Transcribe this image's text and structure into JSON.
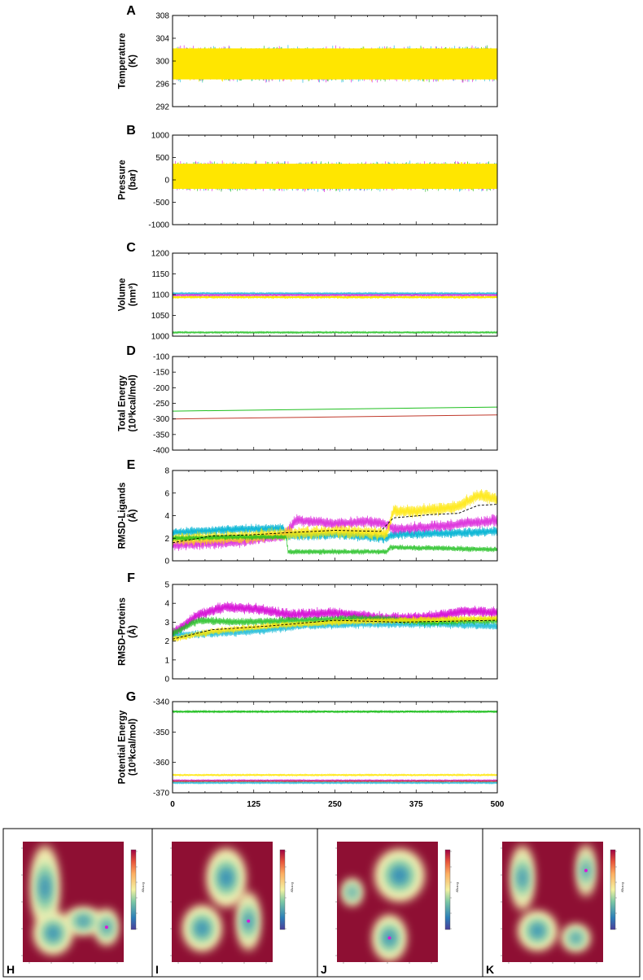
{
  "colors": {
    "yellow": "#ffe600",
    "magenta": "#d81ad8",
    "cyan": "#12b8d6",
    "green": "#1fbf1f",
    "red": "#c0392b",
    "black": "#000000",
    "fel_background": "#8e0f33"
  },
  "series_colors": [
    "cyan",
    "magenta",
    "yellow",
    "green"
  ],
  "x_axis": {
    "ticks": [
      "0",
      "125",
      "250",
      "375",
      "500"
    ],
    "range": [
      0,
      500
    ]
  },
  "chart_data": [
    {
      "letter": "A",
      "type": "line",
      "ylabel_lines": [
        "Temperature",
        "(K)"
      ],
      "yticks": [
        "308",
        "304",
        "300",
        "296",
        "292"
      ],
      "ylim": [
        292,
        308
      ],
      "series": [
        {
          "color": "yellow",
          "mean": 299.5,
          "amplitude": 3.2
        },
        {
          "color": "magenta",
          "mean": 299.5,
          "amplitude": 3.4
        },
        {
          "color": "cyan",
          "mean": 299.5,
          "amplitude": 3.4
        },
        {
          "color": "green",
          "mean": 299.5,
          "amplitude": 3.3
        }
      ]
    },
    {
      "letter": "B",
      "type": "line",
      "ylabel_lines": [
        "Pressure",
        "(bar)"
      ],
      "yticks": [
        "1000",
        "500",
        "0",
        "-500",
        "-1000"
      ],
      "ylim": [
        -1000,
        1000
      ],
      "series": [
        {
          "color": "yellow",
          "mean": 80,
          "amplitude": 330
        },
        {
          "color": "magenta",
          "mean": 80,
          "amplitude": 360
        },
        {
          "color": "cyan",
          "mean": 80,
          "amplitude": 360
        },
        {
          "color": "green",
          "mean": 80,
          "amplitude": 350
        }
      ]
    },
    {
      "letter": "C",
      "type": "line",
      "ylabel_lines": [
        "Volume",
        "(nm³)"
      ],
      "yticks": [
        "1200",
        "1150",
        "1100",
        "1050",
        "1000"
      ],
      "ylim": [
        1000,
        1200
      ],
      "series": [
        {
          "color": "yellow",
          "mean": 1094,
          "amplitude": 4
        },
        {
          "color": "cyan",
          "mean": 1103,
          "amplitude": 3
        },
        {
          "color": "magenta",
          "mean": 1099,
          "amplitude": 3
        },
        {
          "color": "green",
          "mean": 1009,
          "amplitude": 3
        }
      ]
    },
    {
      "letter": "D",
      "type": "line",
      "ylabel_lines": [
        "Total Energy",
        "(10³kcal/mol)"
      ],
      "yticks": [
        "-100",
        "-150",
        "-200",
        "-250",
        "-300",
        "-350",
        "-400"
      ],
      "ylim": [
        -400,
        -100
      ],
      "series": [
        {
          "color": "green",
          "start": -275,
          "end": -262
        },
        {
          "color": "red",
          "start": -300,
          "end": -287
        }
      ]
    },
    {
      "letter": "E",
      "type": "line",
      "ylabel_lines": [
        "RMSD-Ligands",
        "(Å)"
      ],
      "yticks": [
        "8",
        "6",
        "4",
        "2",
        "0"
      ],
      "ylim": [
        0,
        8
      ],
      "series": [
        {
          "color": "cyan",
          "points": [
            [
              0,
              2.5
            ],
            [
              100,
              2.8
            ],
            [
              170,
              2.9
            ],
            [
              175,
              2.2
            ],
            [
              260,
              2.3
            ],
            [
              330,
              2.0
            ],
            [
              335,
              2.3
            ],
            [
              400,
              2.4
            ],
            [
              500,
              2.6
            ]
          ],
          "amplitude": 0.5
        },
        {
          "color": "magenta",
          "points": [
            [
              0,
              1.4
            ],
            [
              100,
              1.7
            ],
            [
              170,
              2.2
            ],
            [
              190,
              3.6
            ],
            [
              250,
              3.3
            ],
            [
              300,
              3.5
            ],
            [
              330,
              3.2
            ],
            [
              340,
              2.8
            ],
            [
              420,
              3.1
            ],
            [
              500,
              3.6
            ]
          ],
          "amplitude": 0.6
        },
        {
          "color": "yellow",
          "points": [
            [
              0,
              1.9
            ],
            [
              100,
              2.1
            ],
            [
              180,
              2.4
            ],
            [
              250,
              2.6
            ],
            [
              300,
              2.5
            ],
            [
              330,
              2.4
            ],
            [
              340,
              4.4
            ],
            [
              380,
              4.4
            ],
            [
              440,
              4.8
            ],
            [
              470,
              5.8
            ],
            [
              500,
              5.5
            ]
          ],
          "amplitude": 0.7
        },
        {
          "color": "green",
          "points": [
            [
              0,
              2.0
            ],
            [
              100,
              2.1
            ],
            [
              175,
              2.1
            ],
            [
              178,
              0.8
            ],
            [
              330,
              0.8
            ],
            [
              335,
              1.2
            ],
            [
              500,
              1.0
            ]
          ],
          "amplitude": 0.3
        }
      ],
      "mean_line": [
        [
          0,
          1.6
        ],
        [
          60,
          2.2
        ],
        [
          120,
          2.3
        ],
        [
          180,
          2.5
        ],
        [
          250,
          2.7
        ],
        [
          320,
          2.6
        ],
        [
          340,
          3.8
        ],
        [
          400,
          4.1
        ],
        [
          440,
          4.2
        ],
        [
          470,
          4.9
        ],
        [
          500,
          5.0
        ]
      ]
    },
    {
      "letter": "F",
      "type": "line",
      "ylabel_lines": [
        "RMSD-Proteins",
        "(Å)"
      ],
      "yticks": [
        "5",
        "4",
        "3",
        "2",
        "1",
        "0"
      ],
      "ylim": [
        0,
        5
      ],
      "series": [
        {
          "color": "magenta",
          "points": [
            [
              0,
              2.4
            ],
            [
              40,
              3.4
            ],
            [
              80,
              3.8
            ],
            [
              130,
              3.7
            ],
            [
              180,
              3.4
            ],
            [
              250,
              3.5
            ],
            [
              330,
              3.2
            ],
            [
              400,
              3.3
            ],
            [
              450,
              3.6
            ],
            [
              500,
              3.5
            ]
          ],
          "amplitude": 0.35
        },
        {
          "color": "cyan",
          "points": [
            [
              0,
              2.3
            ],
            [
              60,
              2.4
            ],
            [
              120,
              2.5
            ],
            [
              200,
              2.8
            ],
            [
              300,
              2.9
            ],
            [
              400,
              2.9
            ],
            [
              500,
              2.8
            ]
          ],
          "amplitude": 0.25
        },
        {
          "color": "green",
          "points": [
            [
              0,
              2.4
            ],
            [
              40,
              3.1
            ],
            [
              100,
              3.0
            ],
            [
              200,
              3.1
            ],
            [
              300,
              3.2
            ],
            [
              400,
              3.0
            ],
            [
              500,
              3.1
            ]
          ],
          "amplitude": 0.25
        },
        {
          "color": "yellow",
          "points": [
            [
              0,
              2.1
            ],
            [
              60,
              2.5
            ],
            [
              150,
              2.8
            ],
            [
              250,
              3.0
            ],
            [
              350,
              3.1
            ],
            [
              500,
              3.2
            ]
          ],
          "amplitude": 0.22
        }
      ],
      "mean_line": [
        [
          0,
          2.1
        ],
        [
          60,
          2.6
        ],
        [
          150,
          2.8
        ],
        [
          250,
          3.1
        ],
        [
          350,
          3.0
        ],
        [
          500,
          3.1
        ]
      ]
    },
    {
      "letter": "G",
      "type": "line",
      "ylabel_lines": [
        "Potential Energy",
        "(10³kcal/mol)"
      ],
      "yticks": [
        "-340",
        "-350",
        "-360",
        "-370"
      ],
      "ylim": [
        -375,
        -334
      ],
      "series": [
        {
          "color": "green",
          "mean": -338.5,
          "amplitude": 0.5
        },
        {
          "color": "yellow",
          "mean": -367,
          "amplitude": 0.6
        },
        {
          "color": "magenta",
          "mean": -369.5,
          "amplitude": 0.5
        },
        {
          "color": "cyan",
          "mean": -370.5,
          "amplitude": 0.4
        },
        {
          "color": "red",
          "mean": -369.8,
          "amplitude": 0.3
        }
      ]
    }
  ],
  "fel_panels": [
    {
      "letter": "H",
      "axis_label": "Energy",
      "blobs": [
        [
          0.22,
          0.38,
          0.1,
          0.26
        ],
        [
          0.3,
          0.76,
          0.14,
          0.13
        ],
        [
          0.6,
          0.66,
          0.14,
          0.08
        ],
        [
          0.83,
          0.71,
          0.08,
          0.11
        ]
      ]
    },
    {
      "letter": "I",
      "axis_label": "Energy",
      "blobs": [
        [
          0.54,
          0.3,
          0.14,
          0.18
        ],
        [
          0.3,
          0.72,
          0.14,
          0.14
        ],
        [
          0.76,
          0.66,
          0.08,
          0.18
        ]
      ]
    },
    {
      "letter": "J",
      "axis_label": "Energy",
      "blobs": [
        [
          0.15,
          0.42,
          0.07,
          0.08
        ],
        [
          0.62,
          0.28,
          0.18,
          0.16
        ],
        [
          0.52,
          0.8,
          0.12,
          0.14
        ]
      ]
    },
    {
      "letter": "K",
      "axis_label": "Energy",
      "blobs": [
        [
          0.2,
          0.3,
          0.08,
          0.2
        ],
        [
          0.35,
          0.74,
          0.14,
          0.12
        ],
        [
          0.73,
          0.8,
          0.1,
          0.08
        ],
        [
          0.83,
          0.24,
          0.06,
          0.16
        ]
      ]
    }
  ]
}
